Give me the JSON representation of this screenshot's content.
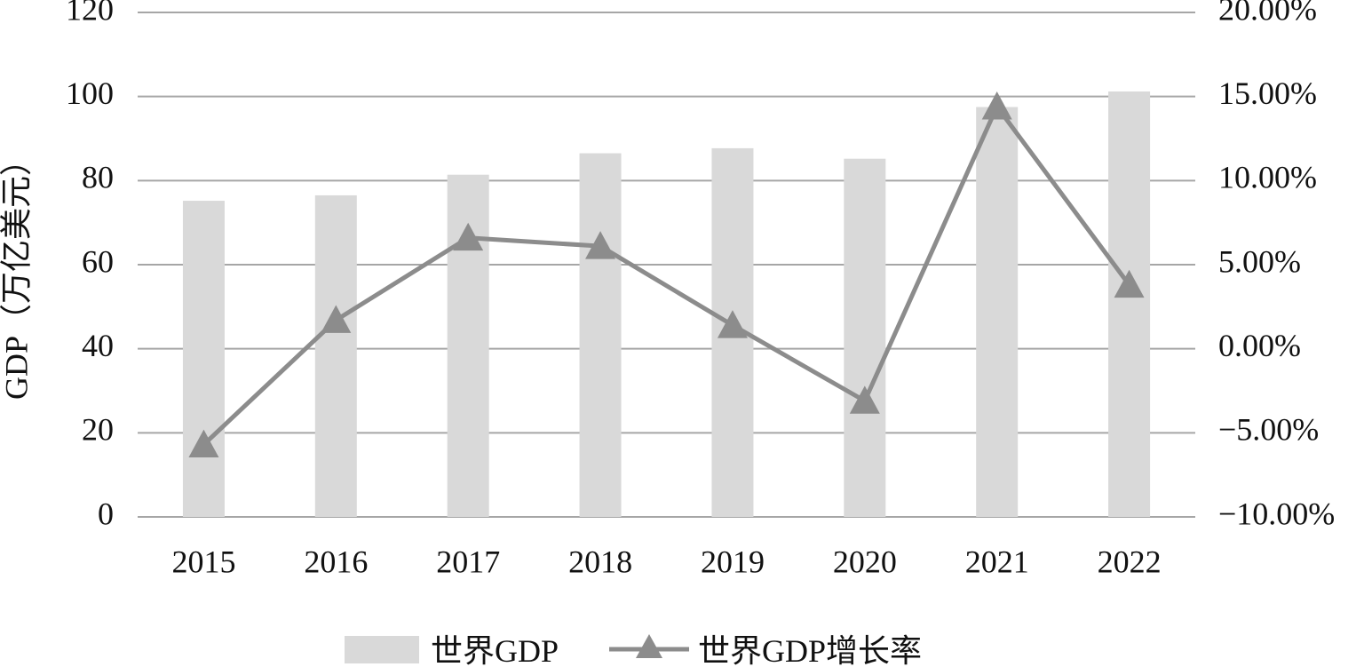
{
  "chart_data": {
    "type": "bar",
    "categories": [
      "2015",
      "2016",
      "2017",
      "2018",
      "2019",
      "2020",
      "2021",
      "2022"
    ],
    "series": [
      {
        "name": "世界GDP",
        "type": "bar",
        "axis": "left",
        "values": [
          75.2,
          76.5,
          81.4,
          86.5,
          87.7,
          85.2,
          97.5,
          101.2
        ]
      },
      {
        "name": "世界GDP增长率",
        "type": "line",
        "axis": "right",
        "marker": "triangle",
        "values": [
          -5.7,
          1.7,
          6.6,
          6.1,
          1.4,
          -3.1,
          14.4,
          3.8
        ]
      }
    ],
    "ylabel": "GDP（万亿美元）",
    "ylim": [
      0,
      120
    ],
    "yticks": [
      "0",
      "20",
      "40",
      "60",
      "80",
      "100",
      "120"
    ],
    "y2lim": [
      -10,
      20
    ],
    "y2ticks": [
      "−10.00%",
      "−5.00%",
      "0.00%",
      "5.00%",
      "10.00%",
      "15.00%",
      "20.00%"
    ],
    "grid": true,
    "legend": "bottom",
    "colors": {
      "bar": "#d9d9d9",
      "line": "#8c8c8c",
      "grid": "#a6a6a6"
    }
  }
}
